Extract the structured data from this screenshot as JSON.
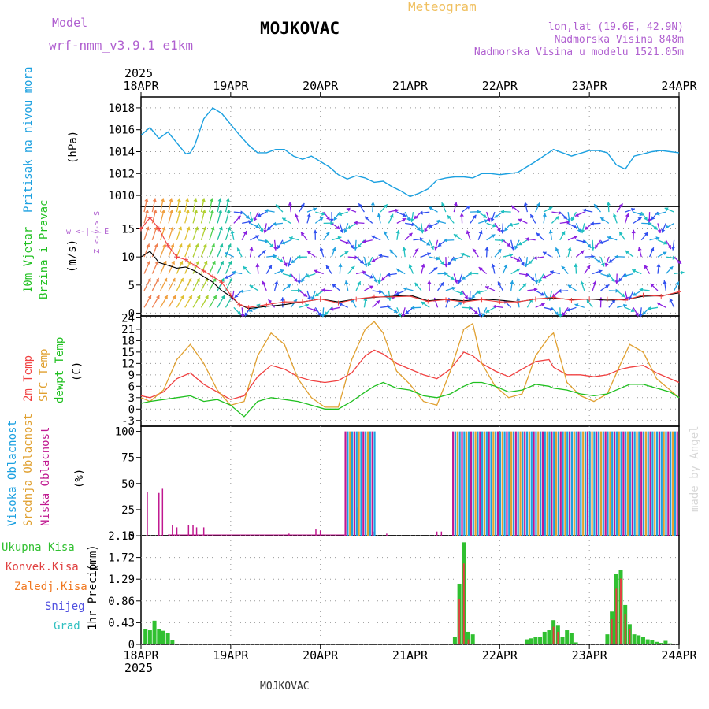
{
  "header": {
    "model_label": "Model",
    "model_name": "wrf-nmm_v3.9.1 e1km",
    "station": "MOJKOVAC",
    "product": "Meteogram",
    "coords": "lon,lat (19.6E, 42.9N)",
    "elevation": "Nadmorska Visina 848m",
    "model_elevation": "Nadmorska Visina u modelu 1521.05m",
    "footer_station": "MOJKOVAC",
    "credit": "made by Angel"
  },
  "colors": {
    "pressure": "#1ba0e0",
    "temp2m": "#f04040",
    "sfc": "#e0a030",
    "dewpt": "#20c020",
    "high_cloud": "#1ba0e0",
    "mid_cloud": "#e0a030",
    "low_cloud": "#c01890",
    "total_precip": "#30c030",
    "conv_precip": "#e04040",
    "freezing": "#f07820",
    "snow": "#5050e0",
    "hail": "#30c0c0",
    "model_label": "#b060d0",
    "product": "#f0c060"
  },
  "time_axis": {
    "year": "2025",
    "ticks": [
      "18APR",
      "19APR",
      "20APR",
      "21APR",
      "22APR",
      "23APR",
      "24APR"
    ]
  },
  "chart_data": [
    {
      "type": "line",
      "name": "pressure",
      "ylabel": "Pritisak na nivou mora",
      "unit": "(hPa)",
      "ylim": [
        1009,
        1019
      ],
      "yticks": [
        1010,
        1012,
        1014,
        1016,
        1018
      ],
      "grid": true,
      "x": [
        0,
        0.1,
        0.2,
        0.3,
        0.4,
        0.5,
        0.55,
        0.6,
        0.7,
        0.8,
        0.9,
        1.0,
        1.1,
        1.2,
        1.3,
        1.4,
        1.5,
        1.6,
        1.7,
        1.8,
        1.9,
        2.0,
        2.1,
        2.2,
        2.3,
        2.4,
        2.5,
        2.6,
        2.7,
        2.8,
        2.9,
        3.0,
        3.1,
        3.2,
        3.3,
        3.4,
        3.5,
        3.6,
        3.7,
        3.8,
        3.9,
        4.0,
        4.2,
        4.4,
        4.6,
        4.8,
        5.0,
        5.1,
        5.2,
        5.3,
        5.4,
        5.5,
        5.6,
        5.7,
        5.8,
        5.9,
        6.0
      ],
      "series": [
        {
          "values": [
            1015.5,
            1016.2,
            1015.2,
            1015.8,
            1014.8,
            1013.8,
            1013.9,
            1014.6,
            1017.0,
            1018.0,
            1017.5,
            1016.5,
            1015.5,
            1014.6,
            1013.9,
            1013.9,
            1014.2,
            1014.2,
            1013.6,
            1013.3,
            1013.6,
            1013.1,
            1012.6,
            1011.9,
            1011.5,
            1011.8,
            1011.6,
            1011.2,
            1011.3,
            1010.8,
            1010.4,
            1009.9,
            1010.2,
            1010.6,
            1011.4,
            1011.6,
            1011.7,
            1011.7,
            1011.6,
            1012.0,
            1012.0,
            1011.9,
            1012.1,
            1013.1,
            1014.2,
            1013.6,
            1014.1,
            1014.1,
            1013.9,
            1012.8,
            1012.4,
            1013.6,
            1013.8,
            1014.0,
            1014.1,
            1014.0,
            1013.9
          ]
        }
      ]
    },
    {
      "type": "scatter",
      "name": "wind",
      "ylabel": "10m Vjetar Brzina i Pravac",
      "unit": "(m/s)",
      "ylim": [
        -0.5,
        19
      ],
      "yticks": [
        0,
        5,
        10,
        15
      ],
      "grid": true,
      "compass": "w <-|-> E",
      "compass_ns": "Z <-|-> S",
      "speed": {
        "x": [
          0,
          0.1,
          0.2,
          0.3,
          0.4,
          0.5,
          0.6,
          0.7,
          0.8,
          0.9,
          1.0,
          1.1,
          1.2,
          1.4,
          1.6,
          1.8,
          2.0,
          2.2,
          2.4,
          2.6,
          2.8,
          3.0,
          3.2,
          3.4,
          3.6,
          3.8,
          4.0,
          4.2,
          4.4,
          4.6,
          4.8,
          5.0,
          5.2,
          5.4,
          5.6,
          5.8,
          6.0
        ],
        "values": [
          10,
          11,
          9,
          8.5,
          8,
          8.2,
          7.5,
          6.5,
          5.5,
          4,
          3,
          1.5,
          0.8,
          1.2,
          1.5,
          2,
          2.5,
          2.0,
          2.5,
          2.8,
          3.0,
          3.2,
          2.2,
          2.5,
          2.2,
          2.5,
          2.3,
          2.0,
          2.5,
          2.7,
          2.4,
          2.5,
          2.3,
          2.4,
          3.0,
          3.1,
          3.6
        ]
      },
      "gust": {
        "x": [
          0,
          0.1,
          0.2,
          0.3,
          0.4,
          0.5,
          0.6,
          0.7,
          0.8,
          0.9,
          1.0,
          1.1,
          1.2,
          1.4,
          1.6,
          1.8,
          2.0,
          2.2,
          2.4,
          2.6,
          2.8,
          3.0,
          3.2,
          3.4,
          3.6,
          3.8,
          4.0,
          4.2,
          4.4,
          4.6,
          4.8,
          5.0,
          5.2,
          5.4,
          5.6,
          5.8,
          6.0
        ],
        "values": [
          15,
          17,
          15,
          12,
          10,
          9.5,
          8.5,
          7.5,
          6.5,
          5.5,
          3.2,
          1.5,
          1.0,
          1.5,
          2.0,
          2.0,
          2.5,
          1.8,
          2.5,
          2.9,
          2.9,
          3.0,
          2.1,
          2.4,
          2.0,
          2.4,
          2.0,
          2.0,
          2.5,
          2.8,
          2.3,
          2.5,
          2.5,
          2.3,
          3.2,
          3.0,
          3.8
        ]
      }
    },
    {
      "type": "line",
      "name": "temperature",
      "ylabel": [
        "2m Temp",
        "SFC Temp",
        "dewpt Temp"
      ],
      "unit": "(C)",
      "ylim": [
        -4.5,
        24.5
      ],
      "yticks": [
        -3,
        0,
        3,
        6,
        9,
        12,
        15,
        18,
        21,
        24
      ],
      "grid": true,
      "x": [
        0,
        0.1,
        0.25,
        0.4,
        0.55,
        0.7,
        0.85,
        1.0,
        1.15,
        1.3,
        1.45,
        1.6,
        1.75,
        1.9,
        2.05,
        2.2,
        2.35,
        2.5,
        2.6,
        2.7,
        2.85,
        3.0,
        3.15,
        3.3,
        3.45,
        3.6,
        3.7,
        3.8,
        3.95,
        4.1,
        4.25,
        4.4,
        4.55,
        4.6,
        4.75,
        4.9,
        5.05,
        5.2,
        5.35,
        5.45,
        5.6,
        5.75,
        5.9,
        6.0
      ],
      "series": [
        {
          "name": "2m Temp",
          "values": [
            3.5,
            3.0,
            4.5,
            8.0,
            9.5,
            6.5,
            4.5,
            2.5,
            3.5,
            8.5,
            11.5,
            10.5,
            8.5,
            7.5,
            7.0,
            7.5,
            9.5,
            14.0,
            15.5,
            14.5,
            12.0,
            10.5,
            9.0,
            8.0,
            10.5,
            15.0,
            14.0,
            12.0,
            10.0,
            8.5,
            10.5,
            12.5,
            13.0,
            11.0,
            9.0,
            9.0,
            8.5,
            9.0,
            10.5,
            11.0,
            11.5,
            9.5,
            8.0,
            7.0
          ]
        },
        {
          "name": "SFC Temp",
          "values": [
            3.0,
            2.0,
            5.0,
            13.0,
            17.0,
            12.0,
            5.0,
            1.0,
            2.0,
            14.0,
            20.0,
            17.0,
            8.0,
            3.0,
            0.5,
            0.5,
            13.0,
            21.0,
            23.0,
            20.0,
            10.0,
            6.5,
            2.0,
            1.0,
            10.0,
            21.0,
            22.5,
            12.0,
            6.0,
            3.0,
            4.0,
            14.0,
            19.0,
            20.0,
            7.0,
            3.5,
            2.0,
            4.0,
            12.0,
            17.0,
            15.0,
            8.0,
            5.0,
            3.0
          ]
        },
        {
          "name": "dewpt Temp",
          "values": [
            1.5,
            2.0,
            2.5,
            3.0,
            3.5,
            2.0,
            2.5,
            1.0,
            -2.0,
            2.0,
            3.0,
            2.5,
            2.0,
            1.0,
            0.0,
            0.0,
            2.0,
            4.5,
            6.0,
            7.0,
            5.5,
            5.0,
            3.5,
            3.0,
            4.0,
            6.0,
            7.0,
            7.0,
            6.0,
            4.5,
            5.0,
            6.5,
            6.0,
            5.5,
            5.0,
            4.0,
            3.5,
            4.0,
            5.5,
            6.5,
            6.5,
            5.5,
            4.5,
            3.0
          ]
        }
      ]
    },
    {
      "type": "bar",
      "name": "cloud",
      "ylabel": [
        "Visoka Oblacnost",
        "Srednja Oblacnost",
        "Niska Oblacnost"
      ],
      "unit": "(%)",
      "ylim": [
        0,
        105
      ],
      "yticks": [
        0,
        25,
        50,
        75,
        100
      ],
      "grid": false,
      "low_bars": {
        "x": [
          0.07,
          0.2,
          0.24,
          0.35,
          0.4,
          0.53,
          0.58,
          0.62,
          0.7,
          1.65,
          1.95,
          2.0,
          2.42,
          2.6,
          2.74,
          3.3,
          3.35
        ],
        "values": [
          42,
          41,
          45,
          10,
          8,
          10,
          10,
          8,
          8,
          2,
          6,
          5,
          27,
          4,
          2,
          4,
          4
        ]
      },
      "cloudy_spans": [
        [
          2.28,
          2.61
        ],
        [
          3.48,
          5.99
        ]
      ],
      "full_cover_percent": 100
    },
    {
      "type": "bar",
      "name": "precipitation",
      "ylabel": "1hr Precip",
      "unit": "(mm)",
      "legend": [
        "Ukupna Kisa",
        "Konvek.Kisa",
        "Zaledj.Kisa",
        "Snijeg",
        "Grad"
      ],
      "ylim": [
        0,
        2.15
      ],
      "yticks": [
        0,
        0.43,
        0.86,
        1.29,
        1.72,
        2.15
      ],
      "ytick_labels": [
        "0",
        "0.43",
        "0.86",
        "1.29",
        "1.72",
        "2.15"
      ],
      "grid": true,
      "total": {
        "x": [
          0.05,
          0.1,
          0.15,
          0.2,
          0.25,
          0.3,
          0.35,
          3.5,
          3.55,
          3.6,
          3.65,
          3.7,
          4.3,
          4.35,
          4.4,
          4.45,
          4.5,
          4.55,
          4.6,
          4.65,
          4.7,
          4.75,
          4.8,
          4.85,
          5.2,
          5.25,
          5.3,
          5.35,
          5.4,
          5.45,
          5.5,
          5.55,
          5.6,
          5.65,
          5.7,
          5.75,
          5.8,
          5.85,
          5.9
        ],
        "values": [
          0.3,
          0.28,
          0.47,
          0.3,
          0.27,
          0.22,
          0.08,
          0.15,
          1.2,
          2.02,
          0.25,
          0.2,
          0.1,
          0.12,
          0.14,
          0.14,
          0.25,
          0.28,
          0.48,
          0.37,
          0.15,
          0.28,
          0.22,
          0.04,
          0.2,
          0.65,
          1.4,
          1.48,
          0.78,
          0.4,
          0.2,
          0.18,
          0.15,
          0.1,
          0.08,
          0.05,
          0.03,
          0.07,
          0.02
        ]
      },
      "convective": {
        "x": [
          3.55,
          3.6,
          3.65,
          4.6,
          4.65,
          5.25,
          5.3,
          5.35,
          5.4,
          5.45
        ],
        "values": [
          0.9,
          1.6,
          0.1,
          0.35,
          0.25,
          0.5,
          1.1,
          1.3,
          0.6,
          0.3
        ]
      }
    }
  ]
}
